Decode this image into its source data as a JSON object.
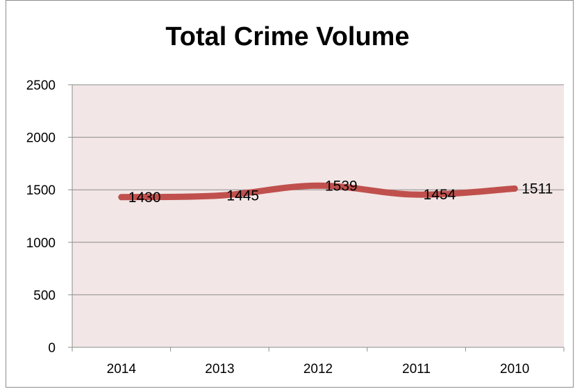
{
  "chart_data": {
    "type": "line",
    "title": "Total Crime Volume",
    "xlabel": "",
    "ylabel": "",
    "categories": [
      "2014",
      "2013",
      "2012",
      "2011",
      "2010"
    ],
    "series": [
      {
        "values": [
          1430,
          1445,
          1539,
          1454,
          1511
        ],
        "color": "#c0504d"
      }
    ],
    "data_labels": [
      "1430",
      "1445",
      "1539",
      "1454",
      "1511"
    ],
    "y_ticks": [
      0,
      500,
      1000,
      1500,
      2000,
      2500
    ],
    "y_tick_labels": [
      "0",
      "500",
      "1000",
      "1500",
      "2000",
      "2500"
    ],
    "ylim": [
      0,
      2500
    ],
    "grid": true,
    "legend": "none",
    "plot_background": "#f2e6e6"
  }
}
